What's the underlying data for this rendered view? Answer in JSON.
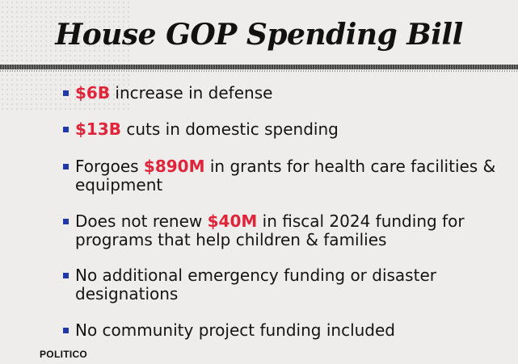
{
  "title": "House GOP Spending Bill",
  "colors": {
    "highlight": "#e0243a",
    "bullet": "#1f3aa8",
    "background": "#efedeb"
  },
  "bullets": [
    {
      "highlight": "$6B",
      "after": " increase in defense"
    },
    {
      "highlight": "$13B",
      "after": " cuts in domestic spending"
    },
    {
      "before": "Forgoes ",
      "highlight": "$890M",
      "after": " in grants for health care facilities & equipment"
    },
    {
      "before": "Does not renew ",
      "highlight": "$40M",
      "after": " in fiscal 2024 funding for programs that help children & families"
    },
    {
      "after": "No additional emergency funding or disaster designations"
    },
    {
      "after": "No community project funding included"
    }
  ],
  "footer": {
    "logo": "POLITICO"
  }
}
